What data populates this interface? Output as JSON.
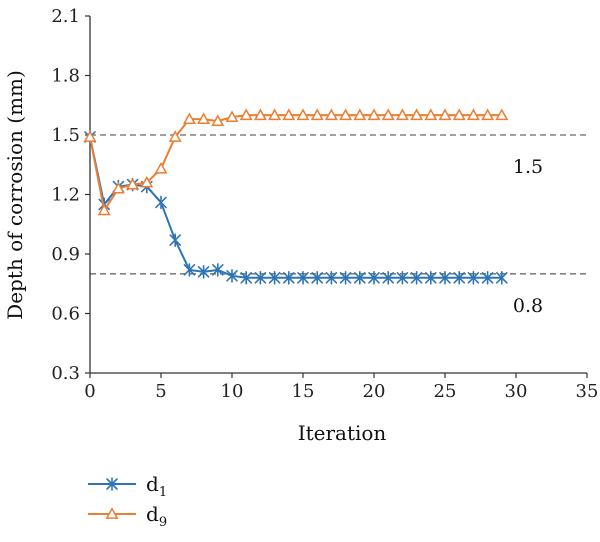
{
  "chart_data": {
    "type": "line",
    "xlabel": "Iteration",
    "ylabel": "Depth of corrosion (mm)",
    "xlim": [
      0,
      35
    ],
    "ylim": [
      0.3,
      2.1
    ],
    "xticks": [
      0,
      5,
      10,
      15,
      20,
      25,
      30,
      35
    ],
    "yticks": [
      0.3,
      0.6,
      0.9,
      1.2,
      1.5,
      1.8,
      2.1
    ],
    "grid": false,
    "legend_position": "bottom-left",
    "reference_lines": [
      {
        "y": 1.5,
        "label": "1.5",
        "color": "#808080",
        "style": "dashed"
      },
      {
        "y": 0.8,
        "label": "0.8",
        "color": "#808080",
        "style": "dashed"
      }
    ],
    "x": [
      0,
      1,
      2,
      3,
      4,
      5,
      6,
      7,
      8,
      9,
      10,
      11,
      12,
      13,
      14,
      15,
      16,
      17,
      18,
      19,
      20,
      21,
      22,
      23,
      24,
      25,
      26,
      27,
      28,
      29
    ],
    "series": [
      {
        "name": "d",
        "subscript": "1",
        "color": "#2E75B6",
        "marker": "asterisk",
        "values": [
          1.49,
          1.15,
          1.24,
          1.25,
          1.24,
          1.16,
          0.97,
          0.82,
          0.81,
          0.82,
          0.79,
          0.78,
          0.78,
          0.78,
          0.78,
          0.78,
          0.78,
          0.78,
          0.78,
          0.78,
          0.78,
          0.78,
          0.78,
          0.78,
          0.78,
          0.78,
          0.78,
          0.78,
          0.78,
          0.78
        ]
      },
      {
        "name": "d",
        "subscript": "9",
        "color": "#ED7D31",
        "marker": "triangle",
        "values": [
          1.49,
          1.12,
          1.23,
          1.25,
          1.26,
          1.33,
          1.49,
          1.58,
          1.58,
          1.57,
          1.59,
          1.6,
          1.6,
          1.6,
          1.6,
          1.6,
          1.6,
          1.6,
          1.6,
          1.6,
          1.6,
          1.6,
          1.6,
          1.6,
          1.6,
          1.6,
          1.6,
          1.6,
          1.6,
          1.6
        ]
      }
    ]
  }
}
